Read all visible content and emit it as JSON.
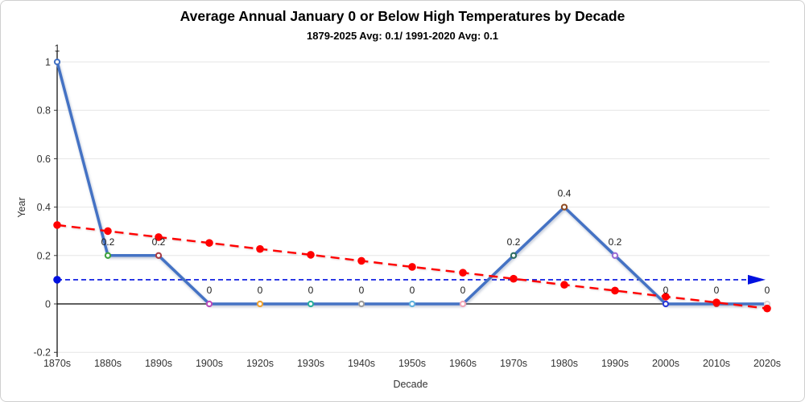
{
  "chart": {
    "title": "Average Annual January 0 or Below High Temperatures by Decade",
    "subtitle": "1879-2025 Avg: 0.1/ 1991-2020 Avg: 0.1",
    "xlabel": "Decade",
    "ylabel": "Year"
  },
  "chart_data": {
    "type": "line",
    "legend": "none",
    "grid": "horizontal",
    "categories": [
      "1870s",
      "1880s",
      "1890s",
      "1900s",
      "1920s",
      "1930s",
      "1940s",
      "1950s",
      "1960s",
      "1970s",
      "1980s",
      "1990s",
      "2000s",
      "2010s",
      "2020s"
    ],
    "yticks": [
      {
        "value": 1,
        "label": "1"
      },
      {
        "value": 0.8,
        "label": "0.8"
      },
      {
        "value": 0.6,
        "label": "0.6"
      },
      {
        "value": 0.4,
        "label": "0.4"
      },
      {
        "value": 0.2,
        "label": "0.2"
      },
      {
        "value": 0,
        "label": "0"
      },
      {
        "value": -0.2,
        "label": "-0.2"
      }
    ],
    "ylim": [
      -0.2,
      1.05
    ],
    "series": [
      {
        "name": "decade-average",
        "type": "line-markers",
        "color": "#4472C4",
        "values": [
          1,
          0.2,
          0.2,
          0,
          0,
          0,
          0,
          0,
          0,
          0.2,
          0.4,
          0.2,
          0,
          0,
          0
        ],
        "data_labels": [
          "1",
          "0.2",
          "0.2",
          "0",
          "0",
          "0",
          "0",
          "0",
          "0",
          "0.2",
          "0.4",
          "0.2",
          "0",
          "0",
          "0"
        ],
        "marker_colors": [
          "#4472C4",
          "#3FA33F",
          "#A83C44",
          "#BB4DBB",
          "#EDA233",
          "#2BAE9E",
          "#9E9E9E",
          "#62B2DE",
          "#EFA6B8",
          "#2F6E62",
          "#8E4A21",
          "#9C6FD6",
          "#2B3BD8",
          "#C94A4A",
          "#D9D9D9"
        ]
      },
      {
        "name": "linear-trend",
        "type": "dashed-line-markers",
        "color": "#FF0000",
        "values": [
          0.326,
          0.301,
          0.276,
          0.252,
          0.227,
          0.203,
          0.178,
          0.153,
          0.129,
          0.104,
          0.079,
          0.055,
          0.03,
          0.006,
          -0.019
        ]
      },
      {
        "name": "average-reference-line",
        "type": "dotted-arrow-line",
        "color": "#0010E0",
        "value": 0.1
      }
    ]
  }
}
